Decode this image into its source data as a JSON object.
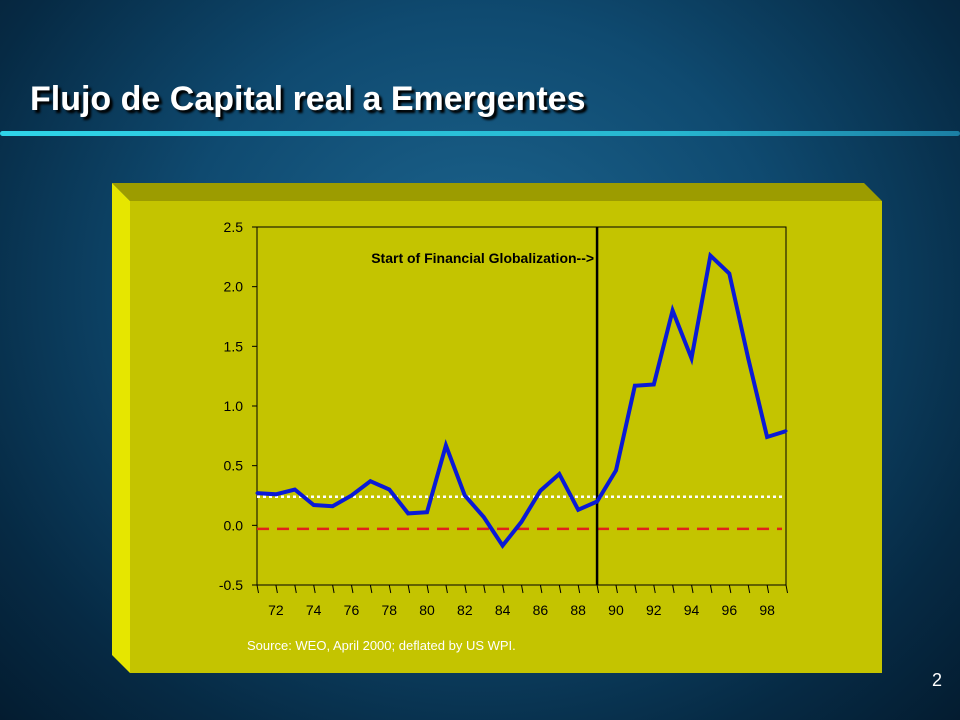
{
  "slide": {
    "title": "Flujo de Capital real a Emergentes",
    "page_number": "2",
    "colors": {
      "panel": "#c4c400",
      "panel_side": "#e6e600",
      "panel_top": "#9c9c00",
      "series": "#0a1ad6",
      "zero_line": "#e0241b",
      "reference_line": "#ffffff"
    }
  },
  "chart_data": {
    "type": "line",
    "annotation": "Start of Financial Globalization-->",
    "annotation_x": 1989,
    "source": "Source: WEO, April 2000; deflated by US WPI.",
    "ylim": [
      -0.5,
      2.5
    ],
    "xlim": [
      1971,
      1999
    ],
    "y_ticks": [
      -0.5,
      0.0,
      0.5,
      1.0,
      1.5,
      2.0,
      2.5
    ],
    "y_tick_labels": [
      "-0.5",
      "0.0",
      "0.5",
      "1.0",
      "1.5",
      "2.0",
      "2.5"
    ],
    "x_tick_labels": [
      "72",
      "74",
      "76",
      "78",
      "80",
      "82",
      "84",
      "86",
      "88",
      "90",
      "92",
      "94",
      "96",
      "98"
    ],
    "x_tick_values": [
      1972,
      1974,
      1976,
      1978,
      1980,
      1982,
      1984,
      1986,
      1988,
      1990,
      1992,
      1994,
      1996,
      1998
    ],
    "reference_line": 0.24,
    "zero_line": -0.03,
    "series": [
      {
        "x": [
          1971,
          1972,
          1973,
          1974,
          1975,
          1976,
          1977,
          1978,
          1979,
          1980,
          1981,
          1982,
          1983,
          1984,
          1985,
          1986,
          1987,
          1988,
          1989,
          1990,
          1991,
          1992,
          1993,
          1994,
          1995,
          1996,
          1997,
          1998,
          1999
        ],
        "values": [
          0.27,
          0.26,
          0.3,
          0.17,
          0.16,
          0.25,
          0.37,
          0.3,
          0.1,
          0.11,
          0.67,
          0.25,
          0.07,
          -0.17,
          0.03,
          0.29,
          0.43,
          0.13,
          0.2,
          0.46,
          1.17,
          1.18,
          1.8,
          1.4,
          2.26,
          2.11,
          1.4,
          0.74,
          0.79
        ]
      }
    ]
  }
}
